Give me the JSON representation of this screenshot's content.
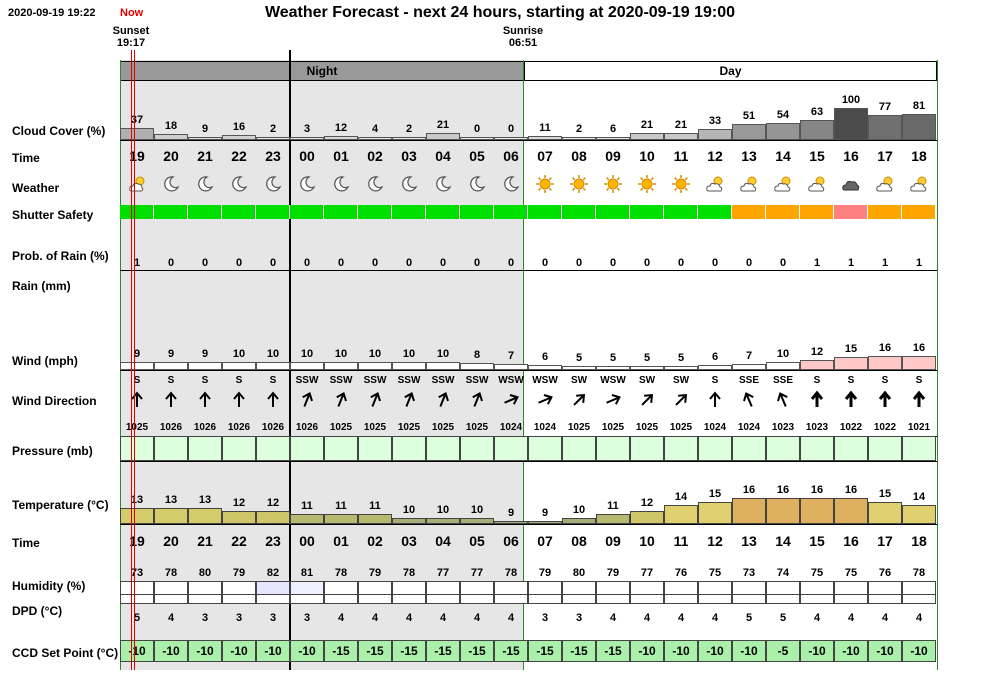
{
  "header": {
    "timestamp": "2020-09-19 19:22",
    "now_label": "Now",
    "title": "Weather Forecast - next 24 hours, starting at 2020-09-19 19:00",
    "sunset_label": "Sunset",
    "sunset_time": "19:17",
    "sunrise_label": "Sunrise",
    "sunrise_time": "06:51",
    "night_label": "Night",
    "day_label": "Day"
  },
  "labels": {
    "cloud": "Cloud Cover (%)",
    "time": "Time",
    "weather": "Weather",
    "shutter": "Shutter Safety",
    "prob_rain": "Prob. of Rain (%)",
    "rain": "Rain (mm)",
    "wind": "Wind (mph)",
    "wind_dir": "Wind Direction",
    "pressure": "Pressure (mb)",
    "temperature": "Temperature (°C)",
    "time2": "Time",
    "humidity": "Humidity (%)",
    "dpd": "DPD (°C)",
    "ccd": "CCD Set Point (°C)"
  },
  "hours": [
    "19",
    "20",
    "21",
    "22",
    "23",
    "00",
    "01",
    "02",
    "03",
    "04",
    "05",
    "06",
    "07",
    "08",
    "09",
    "10",
    "11",
    "12",
    "13",
    "14",
    "15",
    "16",
    "17",
    "18"
  ],
  "cloud": [
    "37",
    "18",
    "9",
    "16",
    "2",
    "3",
    "12",
    "4",
    "2",
    "21",
    "0",
    "0",
    "11",
    "2",
    "6",
    "21",
    "21",
    "33",
    "51",
    "54",
    "63",
    "100",
    "77",
    "81"
  ],
  "weather_icons": [
    "partly-cloudy-night-icon",
    "moon-icon",
    "moon-icon",
    "moon-icon",
    "moon-icon",
    "moon-icon",
    "moon-icon",
    "moon-icon",
    "moon-icon",
    "moon-icon",
    "moon-icon",
    "moon-icon",
    "sun-icon",
    "sun-icon",
    "sun-icon",
    "sun-icon",
    "sun-icon",
    "partly-cloudy-icon",
    "partly-cloudy-icon",
    "partly-cloudy-icon",
    "partly-cloudy-icon",
    "dark-cloud-icon",
    "partly-cloudy-icon",
    "partly-cloudy-icon"
  ],
  "shutter_colors": [
    "#00e000",
    "#00e000",
    "#00e000",
    "#00e000",
    "#00e000",
    "#00e000",
    "#00e000",
    "#00e000",
    "#00e000",
    "#00e000",
    "#00e000",
    "#00e000",
    "#00e000",
    "#00e000",
    "#00e000",
    "#00e000",
    "#00e000",
    "#00e000",
    "#ffa500",
    "#ffa500",
    "#ffa500",
    "#ff8080",
    "#ffa500",
    "#ffa500"
  ],
  "prob_rain": [
    "1",
    "0",
    "0",
    "0",
    "0",
    "0",
    "0",
    "0",
    "0",
    "0",
    "0",
    "0",
    "0",
    "0",
    "0",
    "0",
    "0",
    "0",
    "0",
    "0",
    "1",
    "1",
    "1",
    "1"
  ],
  "wind": [
    "9",
    "9",
    "9",
    "10",
    "10",
    "10",
    "10",
    "10",
    "10",
    "10",
    "8",
    "7",
    "6",
    "5",
    "5",
    "5",
    "5",
    "6",
    "7",
    "10",
    "12",
    "15",
    "16",
    "16"
  ],
  "wind_dir": [
    "S",
    "S",
    "S",
    "S",
    "S",
    "SSW",
    "SSW",
    "SSW",
    "SSW",
    "SSW",
    "SSW",
    "WSW",
    "WSW",
    "SW",
    "WSW",
    "SW",
    "SW",
    "S",
    "SSE",
    "SSE",
    "S",
    "S",
    "S",
    "S"
  ],
  "wind_dir_deg": [
    180,
    180,
    180,
    180,
    180,
    202,
    202,
    202,
    202,
    202,
    202,
    247,
    247,
    225,
    247,
    225,
    225,
    180,
    157,
    157,
    180,
    180,
    180,
    180
  ],
  "pressure": [
    "1025",
    "1026",
    "1026",
    "1026",
    "1026",
    "1026",
    "1025",
    "1025",
    "1025",
    "1025",
    "1025",
    "1024",
    "1024",
    "1025",
    "1025",
    "1025",
    "1025",
    "1024",
    "1024",
    "1023",
    "1023",
    "1022",
    "1022",
    "1021"
  ],
  "temperature": [
    "13",
    "13",
    "13",
    "12",
    "12",
    "11",
    "11",
    "11",
    "10",
    "10",
    "10",
    "9",
    "9",
    "10",
    "11",
    "12",
    "14",
    "15",
    "16",
    "16",
    "16",
    "16",
    "15",
    "14"
  ],
  "humidity": [
    "73",
    "78",
    "80",
    "79",
    "82",
    "81",
    "78",
    "79",
    "78",
    "77",
    "77",
    "78",
    "79",
    "80",
    "79",
    "77",
    "76",
    "75",
    "73",
    "74",
    "75",
    "75",
    "76",
    "78"
  ],
  "dpd": [
    "5",
    "4",
    "3",
    "3",
    "3",
    "3",
    "4",
    "4",
    "4",
    "4",
    "4",
    "4",
    "3",
    "3",
    "4",
    "4",
    "4",
    "4",
    "5",
    "5",
    "4",
    "4",
    "4",
    "4"
  ],
  "ccd": [
    "-10",
    "-10",
    "-10",
    "-10",
    "-10",
    "-10",
    "-15",
    "-15",
    "-15",
    "-15",
    "-15",
    "-15",
    "-15",
    "-15",
    "-15",
    "-10",
    "-10",
    "-10",
    "-10",
    "-5",
    "-10",
    "-10",
    "-10",
    "-10"
  ],
  "colors": {
    "night_bg": "#e6e6e6",
    "night_band": "#999999",
    "sunset_line": "#e00000",
    "border_green": "#2a8a2a",
    "pressure_bg": "#ddffdd",
    "ccd_bg": "#aaf0aa",
    "wind_high": "#ffc8c8"
  }
}
